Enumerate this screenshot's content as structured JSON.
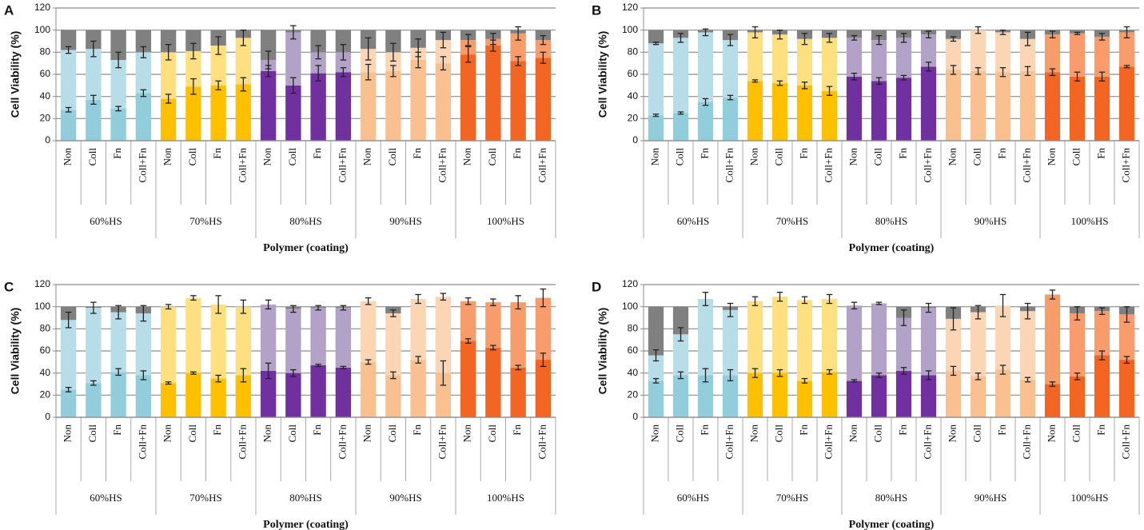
{
  "chart_data": [
    {
      "type": "stacked_bar",
      "label": "A",
      "ylabel": "Cell Viability (%)",
      "xlabel": "Polymer (coating)",
      "groups": [
        "60%HS",
        "70%HS",
        "80%HS",
        "90%HS",
        "100%HS"
      ],
      "categories": [
        "Non",
        "Coll",
        "Fn",
        "Coll+Fn",
        "Non",
        "Coll",
        "Fn",
        "Coll+Fn",
        "Non",
        "Coll",
        "Fn",
        "Coll+Fn",
        "Non",
        "Coll",
        "Fn",
        "Coll+Fn",
        "Non",
        "Coll",
        "Fn",
        "Coll+Fn"
      ],
      "series": [
        {
          "colors": [
            "#92cddc",
            "#ffc000",
            "#7030a0",
            "#fac090",
            "#f26522"
          ],
          "values": [
            28,
            37,
            29,
            43,
            38,
            49,
            50,
            51,
            63,
            50,
            61,
            62,
            62,
            63,
            73,
            70,
            78,
            86,
            72,
            75
          ],
          "errors": [
            2,
            4,
            2,
            3,
            4,
            7,
            4,
            6,
            5,
            7,
            7,
            4,
            7,
            5,
            7,
            6,
            7,
            5,
            4,
            5
          ]
        },
        {
          "colors": [
            "#b7dde8",
            "#ffe080",
            "#b3a2c7",
            "#fcd5b5",
            "#f79c6a"
          ],
          "values": [
            54,
            46,
            44,
            37,
            42,
            32,
            36,
            42,
            10,
            48,
            19,
            18,
            21,
            17,
            11,
            21,
            13,
            6,
            25,
            16
          ],
          "errors": [
            3,
            7,
            7,
            5,
            7,
            7,
            8,
            7,
            8,
            6,
            6,
            7,
            10,
            8,
            8,
            7,
            5,
            5,
            6,
            4
          ]
        },
        {
          "color": "#808080",
          "values": [
            18,
            17,
            27,
            20,
            20,
            19,
            14,
            7,
            27,
            2,
            20,
            20,
            17,
            20,
            16,
            9,
            9,
            8,
            3,
            9
          ]
        }
      ],
      "ylim": [
        0,
        120
      ],
      "yticks": [
        0,
        20,
        40,
        60,
        80,
        100,
        120
      ],
      "grid": true
    },
    {
      "type": "stacked_bar",
      "label": "B",
      "ylabel": "Cell Viability (%)",
      "xlabel": "Polymer (coating)",
      "groups": [
        "60%HS",
        "70%HS",
        "80%HS",
        "90%HS",
        "100%HS"
      ],
      "categories": [
        "Non",
        "Coll",
        "Fn",
        "Coll+Fn",
        "Non",
        "Coll",
        "Fn",
        "Coll+Fn",
        "Non",
        "Coll",
        "Fn",
        "Coll+Fn",
        "Non",
        "Coll",
        "Fn",
        "Coll+Fn",
        "Non",
        "Coll",
        "Fn",
        "Coll+Fn"
      ],
      "series": [
        {
          "colors": [
            "#92cddc",
            "#ffc000",
            "#7030a0",
            "#fac090",
            "#f26522"
          ],
          "values": [
            23,
            25,
            35,
            39,
            54,
            52,
            50,
            45,
            58,
            54,
            57,
            67,
            64,
            63,
            62,
            63,
            62,
            58,
            58,
            67
          ],
          "errors": [
            1,
            1,
            3,
            2,
            1,
            2,
            3,
            4,
            3,
            3,
            2,
            4,
            4,
            3,
            4,
            4,
            3,
            4,
            4,
            1
          ]
        },
        {
          "colors": [
            "#b7dde8",
            "#ffe080",
            "#b3a2c7",
            "#fcd5b5",
            "#f79c6a"
          ],
          "values": [
            65,
            68,
            63,
            52,
            44,
            44,
            42,
            48,
            35,
            37,
            36,
            29,
            28,
            37,
            36,
            29,
            34,
            39,
            36,
            31
          ],
          "errors": [
            1,
            4,
            3,
            5,
            5,
            4,
            5,
            4,
            2,
            4,
            4,
            3,
            2,
            3,
            2,
            6,
            3,
            1,
            3,
            5
          ]
        },
        {
          "color": "#808080",
          "values": [
            12,
            7,
            2,
            9,
            2,
            4,
            8,
            7,
            7,
            9,
            7,
            4,
            8,
            0,
            2,
            8,
            4,
            3,
            6,
            2
          ]
        }
      ],
      "ylim": [
        0,
        120
      ],
      "yticks": [
        0,
        20,
        40,
        60,
        80,
        100,
        120
      ],
      "grid": true
    },
    {
      "type": "stacked_bar",
      "label": "C",
      "ylabel": "Cell Viability (%)",
      "xlabel": "Polymer (coating)",
      "groups": [
        "60%HS",
        "70%HS",
        "80%HS",
        "90%HS",
        "100%HS"
      ],
      "categories": [
        "Non",
        "Coll",
        "Fn",
        "Coll+Fn",
        "Non",
        "Coll",
        "Fn",
        "Coll+Fn",
        "Non",
        "Coll",
        "Fn",
        "Coll+Fn",
        "Non",
        "Coll",
        "Fn",
        "Coll+Fn",
        "Non",
        "Coll",
        "Fn",
        "Coll+Fn"
      ],
      "series": [
        {
          "colors": [
            "#92cddc",
            "#ffc000",
            "#7030a0",
            "#fac090",
            "#f26522"
          ],
          "values": [
            25,
            31,
            41,
            38,
            31,
            40,
            35,
            38,
            42,
            40,
            47,
            45,
            50,
            38,
            52,
            40,
            69,
            63,
            45,
            52
          ],
          "errors": [
            2,
            2,
            3,
            4,
            1,
            1,
            3,
            6,
            7,
            3,
            1,
            1,
            2,
            3,
            3,
            11,
            2,
            2,
            2,
            6
          ]
        },
        {
          "colors": [
            "#b7dde8",
            "#ffe080",
            "#b3a2c7",
            "#fcd5b5",
            "#f79c6a"
          ],
          "values": [
            63,
            68,
            54,
            56,
            69,
            68,
            67,
            62,
            60,
            58,
            52,
            54,
            55,
            56,
            55,
            69,
            36,
            41,
            59,
            56
          ],
          "errors": [
            7,
            5,
            6,
            7,
            2,
            2,
            8,
            6,
            4,
            3,
            2,
            2,
            3,
            3,
            4,
            3,
            3,
            3,
            6,
            8
          ]
        },
        {
          "color": "#808080",
          "values": [
            12,
            1,
            5,
            6,
            0,
            0,
            0,
            0,
            0,
            2,
            1,
            1,
            0,
            6,
            0,
            0,
            0,
            0,
            0,
            0
          ]
        }
      ],
      "ylim": [
        0,
        120
      ],
      "yticks": [
        0,
        20,
        40,
        60,
        80,
        100,
        120
      ],
      "grid": true
    },
    {
      "type": "stacked_bar",
      "label": "D",
      "ylabel": "Cell Viability (%)",
      "xlabel": "Polymer (coating)",
      "groups": [
        "60%HS",
        "70%HS",
        "80%HS",
        "90%HS",
        "100%HS"
      ],
      "categories": [
        "Non",
        "Coll",
        "Fn",
        "Coll+Fn",
        "Non",
        "Coll",
        "Fn",
        "Coll+Fn",
        "Non",
        "Coll",
        "Fn",
        "Coll+Fn",
        "Non",
        "Coll",
        "Fn",
        "Coll+Fn",
        "Non",
        "Coll",
        "Fn",
        "Coll+Fn"
      ],
      "series": [
        {
          "colors": [
            "#92cddc",
            "#ffc000",
            "#7030a0",
            "#fac090",
            "#f26522"
          ],
          "values": [
            33,
            38,
            38,
            38,
            40,
            40,
            33,
            41,
            33,
            38,
            42,
            38,
            42,
            37,
            43,
            34,
            30,
            37,
            56,
            52
          ],
          "errors": [
            2,
            3,
            6,
            5,
            4,
            3,
            2,
            2,
            1,
            2,
            3,
            4,
            4,
            3,
            4,
            2,
            2,
            3,
            4,
            3
          ]
        },
        {
          "colors": [
            "#b7dde8",
            "#ffe080",
            "#b3a2c7",
            "#fcd5b5",
            "#f79c6a"
          ],
          "values": [
            23,
            37,
            69,
            59,
            65,
            69,
            73,
            66,
            68,
            65,
            48,
            61,
            47,
            58,
            58,
            62,
            81,
            57,
            40,
            41
          ],
          "errors": [
            5,
            6,
            6,
            6,
            4,
            4,
            3,
            4,
            3,
            1,
            7,
            4,
            10,
            6,
            10,
            7,
            4,
            6,
            3,
            7
          ]
        },
        {
          "color": "#808080",
          "values": [
            44,
            25,
            0,
            3,
            0,
            0,
            0,
            0,
            0,
            0,
            10,
            1,
            11,
            5,
            0,
            4,
            0,
            6,
            4,
            7
          ]
        }
      ],
      "ylim": [
        0,
        120
      ],
      "yticks": [
        0,
        20,
        40,
        60,
        80,
        100,
        120
      ],
      "grid": true
    }
  ]
}
